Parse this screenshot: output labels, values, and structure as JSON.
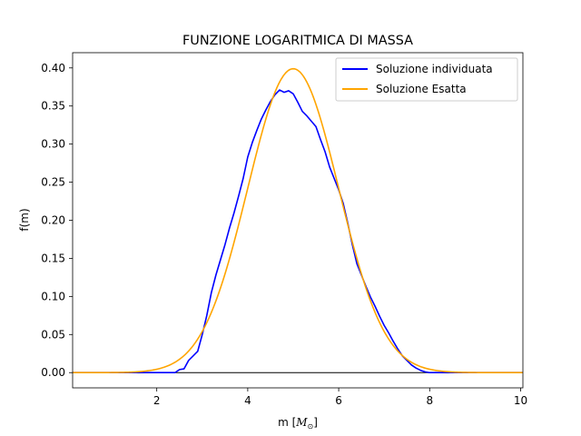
{
  "chart_data": {
    "type": "line",
    "title": "FUNZIONE LOGARITMICA DI MASSA",
    "xlabel": "m [",
    "xlabel_math": "M",
    "xlabel_sub": "⊙",
    "xlabel_end": "]",
    "ylabel": "f(m)",
    "xlim": [
      0.15,
      10.05
    ],
    "ylim": [
      -0.02,
      0.42
    ],
    "xticks": [
      2,
      4,
      6,
      8,
      10
    ],
    "yticks": [
      0.0,
      0.05,
      0.1,
      0.15,
      0.2,
      0.25,
      0.3,
      0.35,
      0.4
    ],
    "grid": false,
    "legend_position": "top-right",
    "reference_line": {
      "y": 0,
      "color": "#000000"
    },
    "series": [
      {
        "name": "Soluzione individuata",
        "color": "#0000ff",
        "x": [
          0.15,
          2.0,
          2.4,
          2.5,
          2.6,
          2.7,
          2.8,
          2.9,
          3.0,
          3.1,
          3.2,
          3.3,
          3.4,
          3.5,
          3.6,
          3.7,
          3.8,
          3.9,
          4.0,
          4.1,
          4.2,
          4.3,
          4.4,
          4.5,
          4.6,
          4.7,
          4.8,
          4.9,
          5.0,
          5.1,
          5.2,
          5.3,
          5.4,
          5.5,
          5.6,
          5.7,
          5.8,
          5.9,
          6.0,
          6.1,
          6.2,
          6.3,
          6.4,
          6.5,
          6.6,
          6.7,
          6.8,
          6.9,
          7.0,
          7.1,
          7.2,
          7.3,
          7.4,
          7.5,
          7.6,
          7.7,
          7.8,
          7.9,
          8.0,
          10.05
        ],
        "y": [
          0.0,
          0.0,
          0.0,
          0.004,
          0.005,
          0.016,
          0.022,
          0.028,
          0.05,
          0.075,
          0.105,
          0.128,
          0.148,
          0.168,
          0.19,
          0.21,
          0.232,
          0.255,
          0.283,
          0.302,
          0.318,
          0.333,
          0.345,
          0.356,
          0.365,
          0.371,
          0.368,
          0.37,
          0.366,
          0.355,
          0.343,
          0.337,
          0.33,
          0.323,
          0.306,
          0.29,
          0.27,
          0.255,
          0.24,
          0.222,
          0.196,
          0.168,
          0.143,
          0.128,
          0.113,
          0.099,
          0.087,
          0.074,
          0.062,
          0.052,
          0.041,
          0.031,
          0.022,
          0.016,
          0.01,
          0.006,
          0.003,
          0.001,
          0.0,
          0.0
        ]
      },
      {
        "name": "Soluzione Esatta",
        "color": "#ffa500",
        "function": "gaussian",
        "mean": 5.0,
        "sigma": 1.0,
        "x_range": [
          0.15,
          10.05
        ]
      }
    ]
  }
}
